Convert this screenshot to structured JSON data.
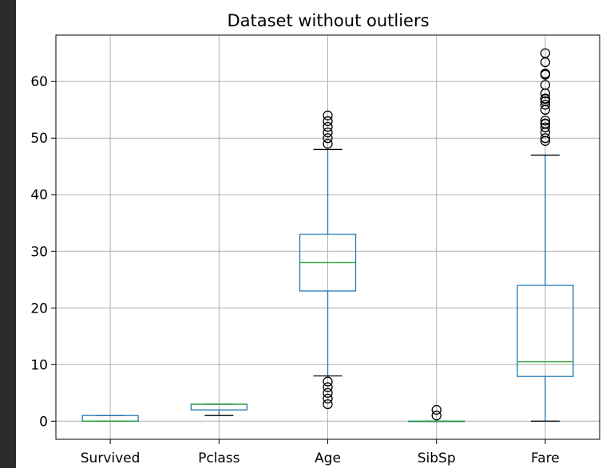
{
  "chart_data": {
    "type": "box",
    "title": "Dataset without outliers",
    "xlabel": "",
    "ylabel": "",
    "categories": [
      "Survived",
      "Pclass",
      "Age",
      "SibSp",
      "Fare"
    ],
    "ylim": [
      -3.2,
      68.2
    ],
    "yticks": [
      0,
      10,
      20,
      30,
      40,
      50,
      60
    ],
    "grid": true,
    "colors": {
      "box": "#1f77b4",
      "median": "#2ca02c",
      "whisker_cap": "#000000",
      "flier": "#000000",
      "grid": "#b0b0b0"
    },
    "boxes": [
      {
        "name": "Survived",
        "whislo": 0,
        "q1": 0,
        "med": 0,
        "q3": 1,
        "whishi": 1,
        "fliers": []
      },
      {
        "name": "Pclass",
        "whislo": 1,
        "q1": 2,
        "med": 3,
        "q3": 3,
        "whishi": 3,
        "fliers": []
      },
      {
        "name": "Age",
        "whislo": 8,
        "q1": 23,
        "med": 28,
        "q3": 33,
        "whishi": 48,
        "fliers": [
          3,
          4,
          5,
          6,
          7,
          49,
          50,
          51,
          52,
          53,
          54
        ]
      },
      {
        "name": "SibSp",
        "whislo": 0,
        "q1": 0,
        "med": 0,
        "q3": 0,
        "whishi": 0,
        "fliers": [
          1,
          2
        ]
      },
      {
        "name": "Fare",
        "whislo": 0,
        "q1": 7.9,
        "med": 10.5,
        "q3": 24,
        "whishi": 47,
        "fliers": [
          49.5,
          50,
          51,
          51.9,
          52.5,
          52.6,
          53.1,
          55,
          55.9,
          56.5,
          56.9,
          57,
          57.9,
          59.4,
          61.2,
          61.4,
          63.4,
          65
        ]
      }
    ]
  }
}
